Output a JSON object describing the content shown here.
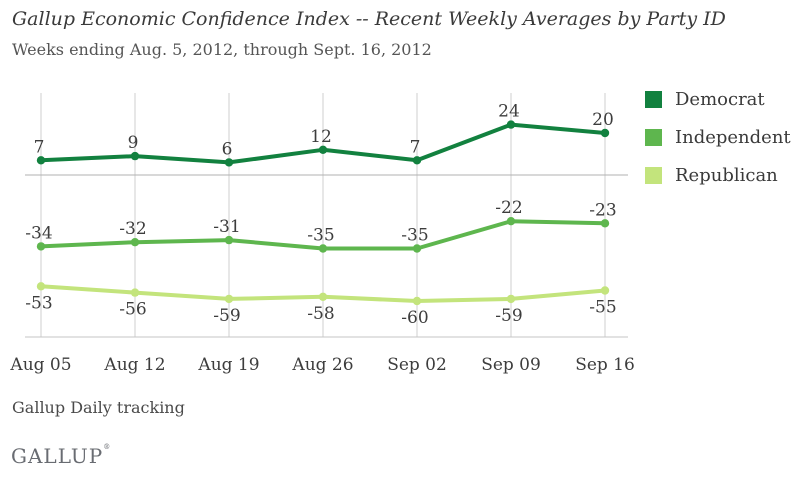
{
  "header": {
    "title": "Gallup Economic Confidence Index -- Recent Weekly Averages by Party ID",
    "subtitle": "Weeks ending Aug. 5, 2012, through Sept. 16, 2012"
  },
  "chart_data": {
    "type": "line",
    "title": "Gallup Economic Confidence Index -- Recent Weekly Averages by Party ID",
    "categories": [
      "Aug 05",
      "Aug 12",
      "Aug 19",
      "Aug 26",
      "Sep 02",
      "Sep 09",
      "Sep 16"
    ],
    "series": [
      {
        "name": "Democrat",
        "color": "#12813f",
        "values": [
          7,
          9,
          6,
          12,
          7,
          24,
          20
        ],
        "label_position": "above"
      },
      {
        "name": "Independent",
        "color": "#5eb64e",
        "values": [
          -34,
          -32,
          -31,
          -35,
          -35,
          -22,
          -23
        ],
        "label_position": "above"
      },
      {
        "name": "Republican",
        "color": "#c3e47c",
        "values": [
          -53,
          -56,
          -59,
          -58,
          -60,
          -59,
          -55
        ],
        "label_position": "below"
      }
    ],
    "ylim": [
      -77,
      39
    ],
    "grid": "vertical-only",
    "zero_line": true,
    "legend_position": "right",
    "data_labels": true
  },
  "footer": {
    "source_note": "Gallup Daily tracking",
    "logo": "GALLUP",
    "logo_mark": "®"
  }
}
